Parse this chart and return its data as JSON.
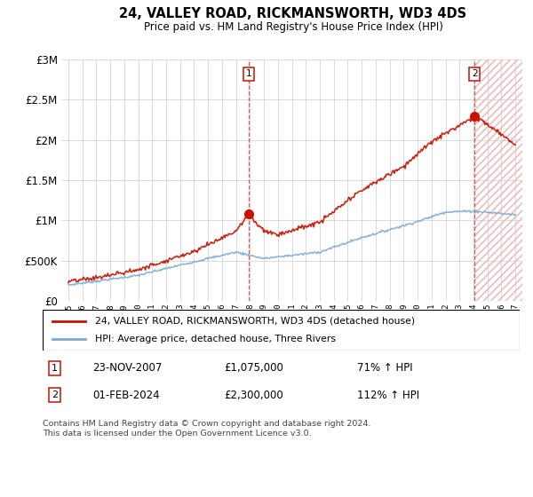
{
  "title": "24, VALLEY ROAD, RICKMANSWORTH, WD3 4DS",
  "subtitle": "Price paid vs. HM Land Registry's House Price Index (HPI)",
  "ylim": [
    0,
    3000000
  ],
  "yticks": [
    0,
    500000,
    1000000,
    1500000,
    2000000,
    2500000,
    3000000
  ],
  "ytick_labels": [
    "£0",
    "£500K",
    "£1M",
    "£1.5M",
    "£2M",
    "£2.5M",
    "£3M"
  ],
  "hpi_color": "#7aaad4",
  "price_color": "#cc1100",
  "marker1_date_label": "23-NOV-2007",
  "marker1_price": "£1,075,000",
  "marker1_hpi": "71% ↑ HPI",
  "marker2_date_label": "01-FEB-2024",
  "marker2_price": "£2,300,000",
  "marker2_hpi": "112% ↑ HPI",
  "legend_label1": "24, VALLEY ROAD, RICKMANSWORTH, WD3 4DS (detached house)",
  "legend_label2": "HPI: Average price, detached house, Three Rivers",
  "footnote": "Contains HM Land Registry data © Crown copyright and database right 2024.\nThis data is licensed under the Open Government Licence v3.0.",
  "vline1_x": 2007.9,
  "vline2_x": 2024.08,
  "marker1_x": 2007.9,
  "marker1_y": 1075000,
  "marker2_x": 2024.08,
  "marker2_y": 2300000,
  "xmin": 1994.5,
  "xmax": 2027.5
}
